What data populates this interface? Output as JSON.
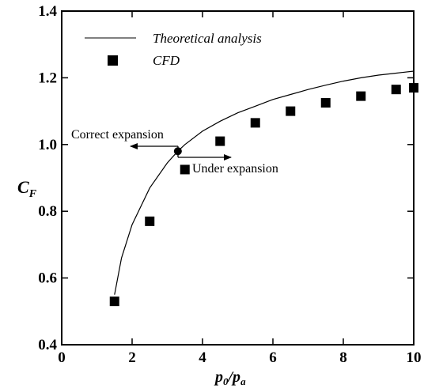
{
  "chart_data": {
    "type": "scatter",
    "title": "",
    "xlabel": "p0/pa",
    "ylabel": "CF",
    "xlim": [
      0,
      10
    ],
    "ylim": [
      0.4,
      1.4
    ],
    "xticks": [
      0,
      2,
      4,
      6,
      8,
      10
    ],
    "yticks": [
      0.4,
      0.6,
      0.8,
      1.0,
      1.2,
      1.4
    ],
    "xtick_labels": [
      "0",
      "2",
      "4",
      "6",
      "8",
      "10"
    ],
    "ytick_labels": [
      "0.4",
      "0.6",
      "0.8",
      "1.0",
      "1.2",
      "1.4"
    ],
    "grid": false,
    "legend_position": "top-left",
    "series": [
      {
        "name": "Theoretical analysis",
        "kind": "line",
        "color": "#000000",
        "x": [
          1.5,
          1.7,
          2.0,
          2.5,
          3.0,
          3.3,
          3.5,
          4.0,
          4.5,
          5.0,
          5.5,
          6.0,
          6.5,
          7.0,
          7.5,
          8.0,
          8.5,
          9.0,
          9.5,
          10.0
        ],
        "y": [
          0.55,
          0.66,
          0.76,
          0.87,
          0.945,
          0.98,
          1.0,
          1.04,
          1.07,
          1.095,
          1.115,
          1.135,
          1.15,
          1.165,
          1.178,
          1.19,
          1.2,
          1.208,
          1.214,
          1.22
        ]
      },
      {
        "name": "CFD",
        "kind": "marker",
        "marker": "square",
        "color": "#000000",
        "x": [
          1.5,
          2.5,
          3.5,
          4.5,
          5.5,
          6.5,
          7.5,
          8.5,
          9.5,
          10.0
        ],
        "y": [
          0.53,
          0.77,
          0.925,
          1.01,
          1.065,
          1.1,
          1.125,
          1.145,
          1.165,
          1.17
        ]
      }
    ],
    "annotations": [
      {
        "text": "Correct expansion",
        "arrow_direction": "left"
      },
      {
        "text": "Under expansion",
        "arrow_direction": "right"
      }
    ],
    "correct_expansion_point": {
      "x": 3.3,
      "y": 0.98
    }
  }
}
